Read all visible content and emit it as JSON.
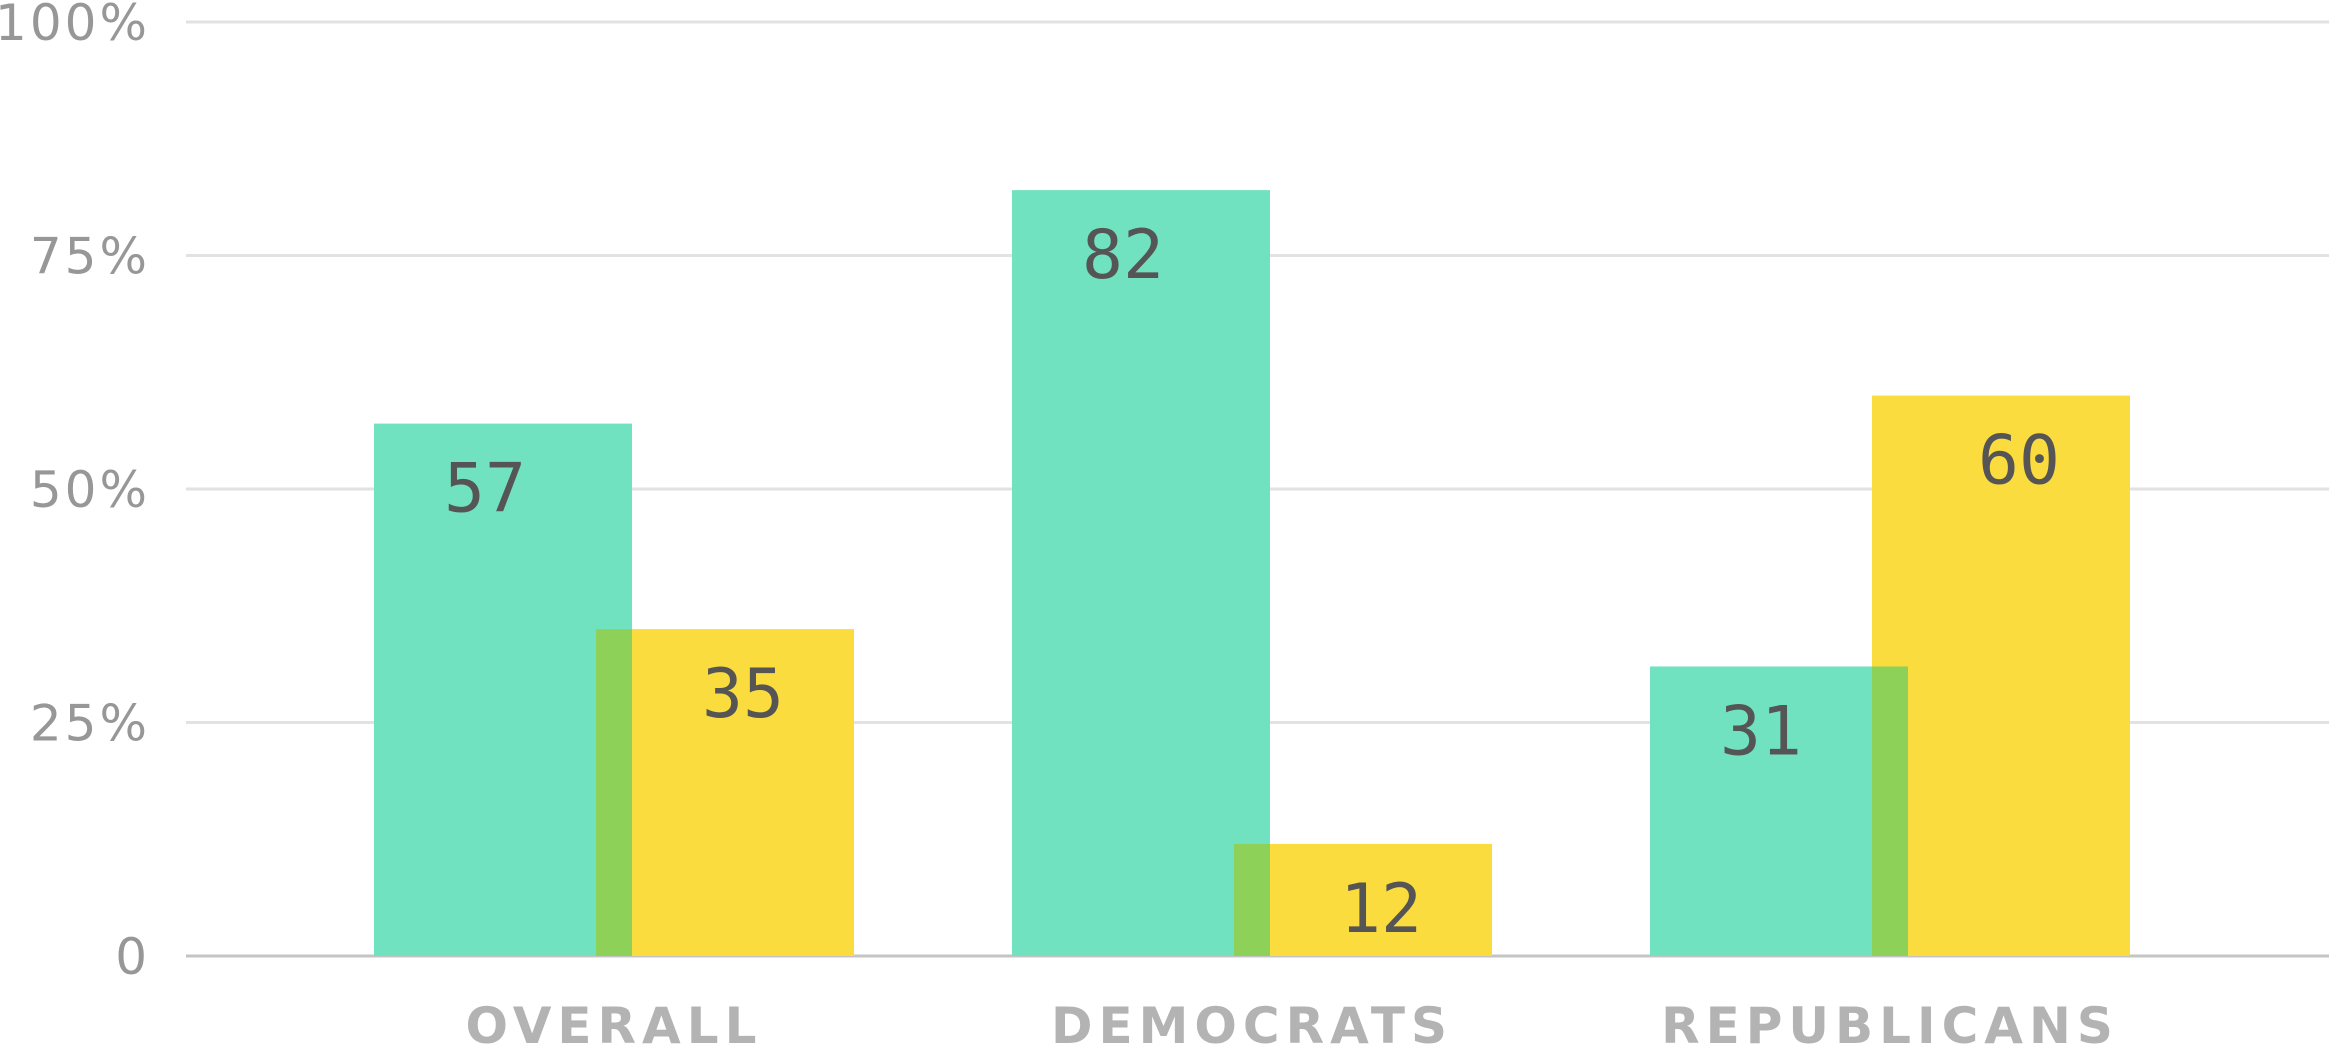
{
  "chart_data": {
    "type": "bar",
    "categories": [
      "OVERALL",
      "DEMOCRATS",
      "REPUBLICANS"
    ],
    "series": [
      {
        "values": [
          57,
          82,
          31
        ],
        "color": "#71e2bf"
      },
      {
        "values": [
          35,
          12,
          60
        ],
        "color": "#fbdc3f"
      }
    ],
    "overlap_color": "#8ed158",
    "ylim": [
      0,
      100
    ],
    "yticks": [
      {
        "value": 0,
        "label": "0"
      },
      {
        "value": 25,
        "label": "25%"
      },
      {
        "value": 50,
        "label": "50%"
      },
      {
        "value": 75,
        "label": "75%"
      },
      {
        "value": 100,
        "label": "100%"
      }
    ],
    "title": "",
    "xlabel": "",
    "ylabel": "",
    "legend": "none",
    "grid": true,
    "data_labels": true
  }
}
